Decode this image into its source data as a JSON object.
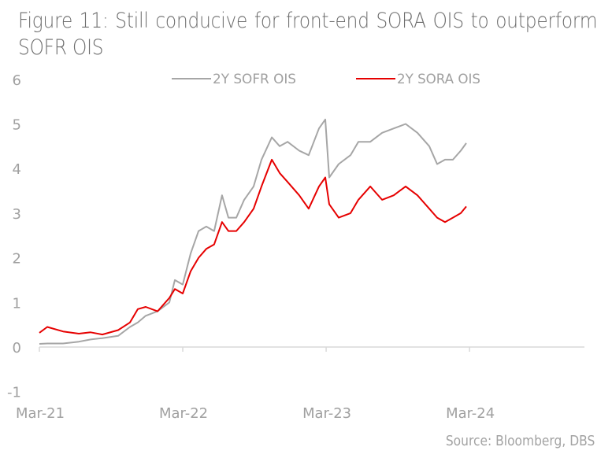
{
  "chart_data": {
    "type": "line",
    "title": "Figure 11: Still conducive for front-end SORA OIS to outperform SOFR OIS",
    "xlabel": "",
    "ylabel": "",
    "ylim": [
      -1,
      6
    ],
    "yticks": [
      6,
      5,
      4,
      3,
      2,
      1,
      0,
      -1
    ],
    "x_unit": "months since Mar-21",
    "xlim": [
      0,
      46
    ],
    "xticks": [
      {
        "label": "Mar-21",
        "month": 0
      },
      {
        "label": "Mar-22",
        "month": 12
      },
      {
        "label": "Mar-23",
        "month": 24
      },
      {
        "label": "Mar-24",
        "month": 36
      }
    ],
    "legend_position": "top-center",
    "grid": false,
    "x": [
      0,
      0.66,
      1.98,
      3.3,
      4.29,
      5.27,
      6.59,
      7.58,
      8.24,
      8.9,
      9.89,
      10.88,
      11.34,
      12.0,
      12.66,
      13.32,
      13.97,
      14.63,
      15.29,
      15.82,
      16.48,
      17.14,
      17.93,
      18.59,
      19.45,
      20.11,
      20.77,
      21.75,
      22.54,
      23.4,
      23.93,
      24.26,
      25.05,
      26.04,
      26.7,
      27.69,
      28.68,
      29.66,
      30.65,
      31.64,
      32.63,
      33.29,
      33.95,
      34.61,
      35.27,
      35.73
    ],
    "series": [
      {
        "name": "2Y SOFR OIS",
        "color": "#a6a6a6",
        "values": [
          0.07,
          0.08,
          0.08,
          0.12,
          0.17,
          0.2,
          0.25,
          0.45,
          0.55,
          0.7,
          0.8,
          1.0,
          1.5,
          1.4,
          2.1,
          2.6,
          2.7,
          2.6,
          3.4,
          2.9,
          2.9,
          3.3,
          3.6,
          4.2,
          4.7,
          4.5,
          4.6,
          4.4,
          4.3,
          4.9,
          5.1,
          3.8,
          4.1,
          4.3,
          4.6,
          4.6,
          4.8,
          4.9,
          5.0,
          4.8,
          4.5,
          4.1,
          4.2,
          4.2,
          4.4,
          4.57
        ]
      },
      {
        "name": "2Y SORA OIS",
        "color": "#e60000",
        "values": [
          0.32,
          0.45,
          0.35,
          0.3,
          0.33,
          0.28,
          0.38,
          0.55,
          0.85,
          0.9,
          0.8,
          1.1,
          1.3,
          1.2,
          1.7,
          2.0,
          2.2,
          2.3,
          2.8,
          2.6,
          2.6,
          2.8,
          3.1,
          3.6,
          4.2,
          3.9,
          3.7,
          3.4,
          3.1,
          3.6,
          3.8,
          3.2,
          2.9,
          3.0,
          3.3,
          3.6,
          3.3,
          3.4,
          3.6,
          3.4,
          3.1,
          2.9,
          2.8,
          2.9,
          3.0,
          3.15
        ]
      }
    ],
    "source": "Source: Bloomberg, DBS"
  }
}
